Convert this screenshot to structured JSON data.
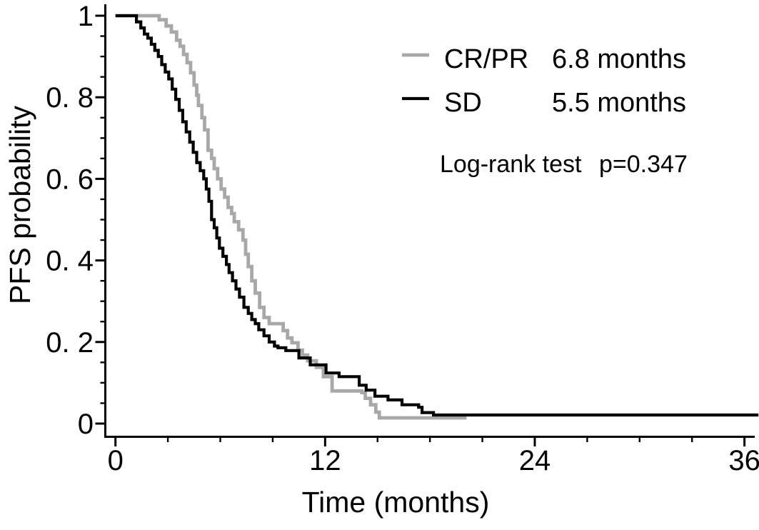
{
  "chart_data": {
    "type": "line",
    "variant": "kaplan_meier_step",
    "xlabel": "Time (months)",
    "ylabel": "PFS probability",
    "xlim": [
      0,
      36.8
    ],
    "ylim": [
      0,
      1
    ],
    "x_major_ticks": [
      0,
      12,
      24,
      36
    ],
    "x_tick_labels": [
      "0",
      "12",
      "24",
      "36"
    ],
    "x_minor_tick_step": 3,
    "y_major_ticks": [
      0,
      0.2,
      0.4,
      0.6,
      0.8,
      1
    ],
    "y_tick_labels": [
      "0",
      "0. 2",
      "0. 4",
      "0. 6",
      "0. 8",
      "1"
    ],
    "y_minor_tick_step": 0.05,
    "grid": false,
    "legend_position": "top-right-inside",
    "annotation_label": "Log-rank test",
    "annotation_value": "p=0.347",
    "axis_color": "#000000",
    "background_color": "#ffffff",
    "series": [
      {
        "label": "CR/PR",
        "median": "6.8 months",
        "color": "#a8a8a8",
        "stroke_width": 4.8,
        "steps": [
          [
            0,
            1
          ],
          [
            2.25,
            1
          ],
          [
            2.5,
            0.99
          ],
          [
            2.9,
            0.975
          ],
          [
            3.2,
            0.96
          ],
          [
            3.5,
            0.94
          ],
          [
            3.7,
            0.925
          ],
          [
            3.9,
            0.905
          ],
          [
            4.1,
            0.885
          ],
          [
            4.3,
            0.86
          ],
          [
            4.5,
            0.83
          ],
          [
            4.65,
            0.805
          ],
          [
            4.75,
            0.78
          ],
          [
            4.95,
            0.75
          ],
          [
            5.1,
            0.72
          ],
          [
            5.3,
            0.67
          ],
          [
            5.5,
            0.65
          ],
          [
            5.65,
            0.625
          ],
          [
            5.85,
            0.6
          ],
          [
            6.05,
            0.575
          ],
          [
            6.25,
            0.555
          ],
          [
            6.45,
            0.53
          ],
          [
            6.65,
            0.515
          ],
          [
            6.8,
            0.495
          ],
          [
            7.05,
            0.475
          ],
          [
            7.3,
            0.45
          ],
          [
            7.45,
            0.415
          ],
          [
            7.6,
            0.385
          ],
          [
            7.8,
            0.35
          ],
          [
            8.0,
            0.32
          ],
          [
            8.25,
            0.285
          ],
          [
            8.5,
            0.26
          ],
          [
            8.8,
            0.245
          ],
          [
            9.6,
            0.228
          ],
          [
            9.85,
            0.21
          ],
          [
            10.1,
            0.198
          ],
          [
            10.45,
            0.18
          ],
          [
            10.7,
            0.168
          ],
          [
            11.0,
            0.154
          ],
          [
            11.5,
            0.138
          ],
          [
            11.9,
            0.115
          ],
          [
            12.4,
            0.08
          ],
          [
            14.1,
            0.076
          ],
          [
            14.3,
            0.062
          ],
          [
            14.6,
            0.046
          ],
          [
            14.9,
            0.028
          ],
          [
            15.1,
            0.014
          ],
          [
            20.1,
            0.014
          ]
        ]
      },
      {
        "label": "SD",
        "median": "5.5 months",
        "color": "#000000",
        "stroke_width": 4.2,
        "steps": [
          [
            0,
            1
          ],
          [
            1.05,
            1
          ],
          [
            1.2,
            0.985
          ],
          [
            1.45,
            0.97
          ],
          [
            1.65,
            0.955
          ],
          [
            1.85,
            0.945
          ],
          [
            2.05,
            0.93
          ],
          [
            2.25,
            0.915
          ],
          [
            2.45,
            0.9
          ],
          [
            2.65,
            0.88
          ],
          [
            2.85,
            0.862
          ],
          [
            3.05,
            0.845
          ],
          [
            3.25,
            0.82
          ],
          [
            3.45,
            0.795
          ],
          [
            3.65,
            0.768
          ],
          [
            3.85,
            0.74
          ],
          [
            4.05,
            0.715
          ],
          [
            4.25,
            0.69
          ],
          [
            4.45,
            0.665
          ],
          [
            4.65,
            0.64
          ],
          [
            4.85,
            0.62
          ],
          [
            5.05,
            0.6
          ],
          [
            5.2,
            0.575
          ],
          [
            5.35,
            0.545
          ],
          [
            5.5,
            0.5
          ],
          [
            5.65,
            0.48
          ],
          [
            5.8,
            0.455
          ],
          [
            5.95,
            0.43
          ],
          [
            6.15,
            0.41
          ],
          [
            6.35,
            0.39
          ],
          [
            6.5,
            0.37
          ],
          [
            6.7,
            0.35
          ],
          [
            6.9,
            0.33
          ],
          [
            7.1,
            0.31
          ],
          [
            7.35,
            0.285
          ],
          [
            7.6,
            0.27
          ],
          [
            7.8,
            0.255
          ],
          [
            8.0,
            0.245
          ],
          [
            8.2,
            0.23
          ],
          [
            8.5,
            0.215
          ],
          [
            8.8,
            0.2
          ],
          [
            9.1,
            0.19
          ],
          [
            9.3,
            0.186
          ],
          [
            9.75,
            0.179
          ],
          [
            10.5,
            0.161
          ],
          [
            11.15,
            0.144
          ],
          [
            12.05,
            0.124
          ],
          [
            12.8,
            0.115
          ],
          [
            13.95,
            0.094
          ],
          [
            14.35,
            0.082
          ],
          [
            14.85,
            0.067
          ],
          [
            15.6,
            0.058
          ],
          [
            16.4,
            0.046
          ],
          [
            17.35,
            0.04
          ],
          [
            17.55,
            0.027
          ],
          [
            18.2,
            0.021
          ],
          [
            36.8,
            0.021
          ]
        ]
      }
    ]
  }
}
